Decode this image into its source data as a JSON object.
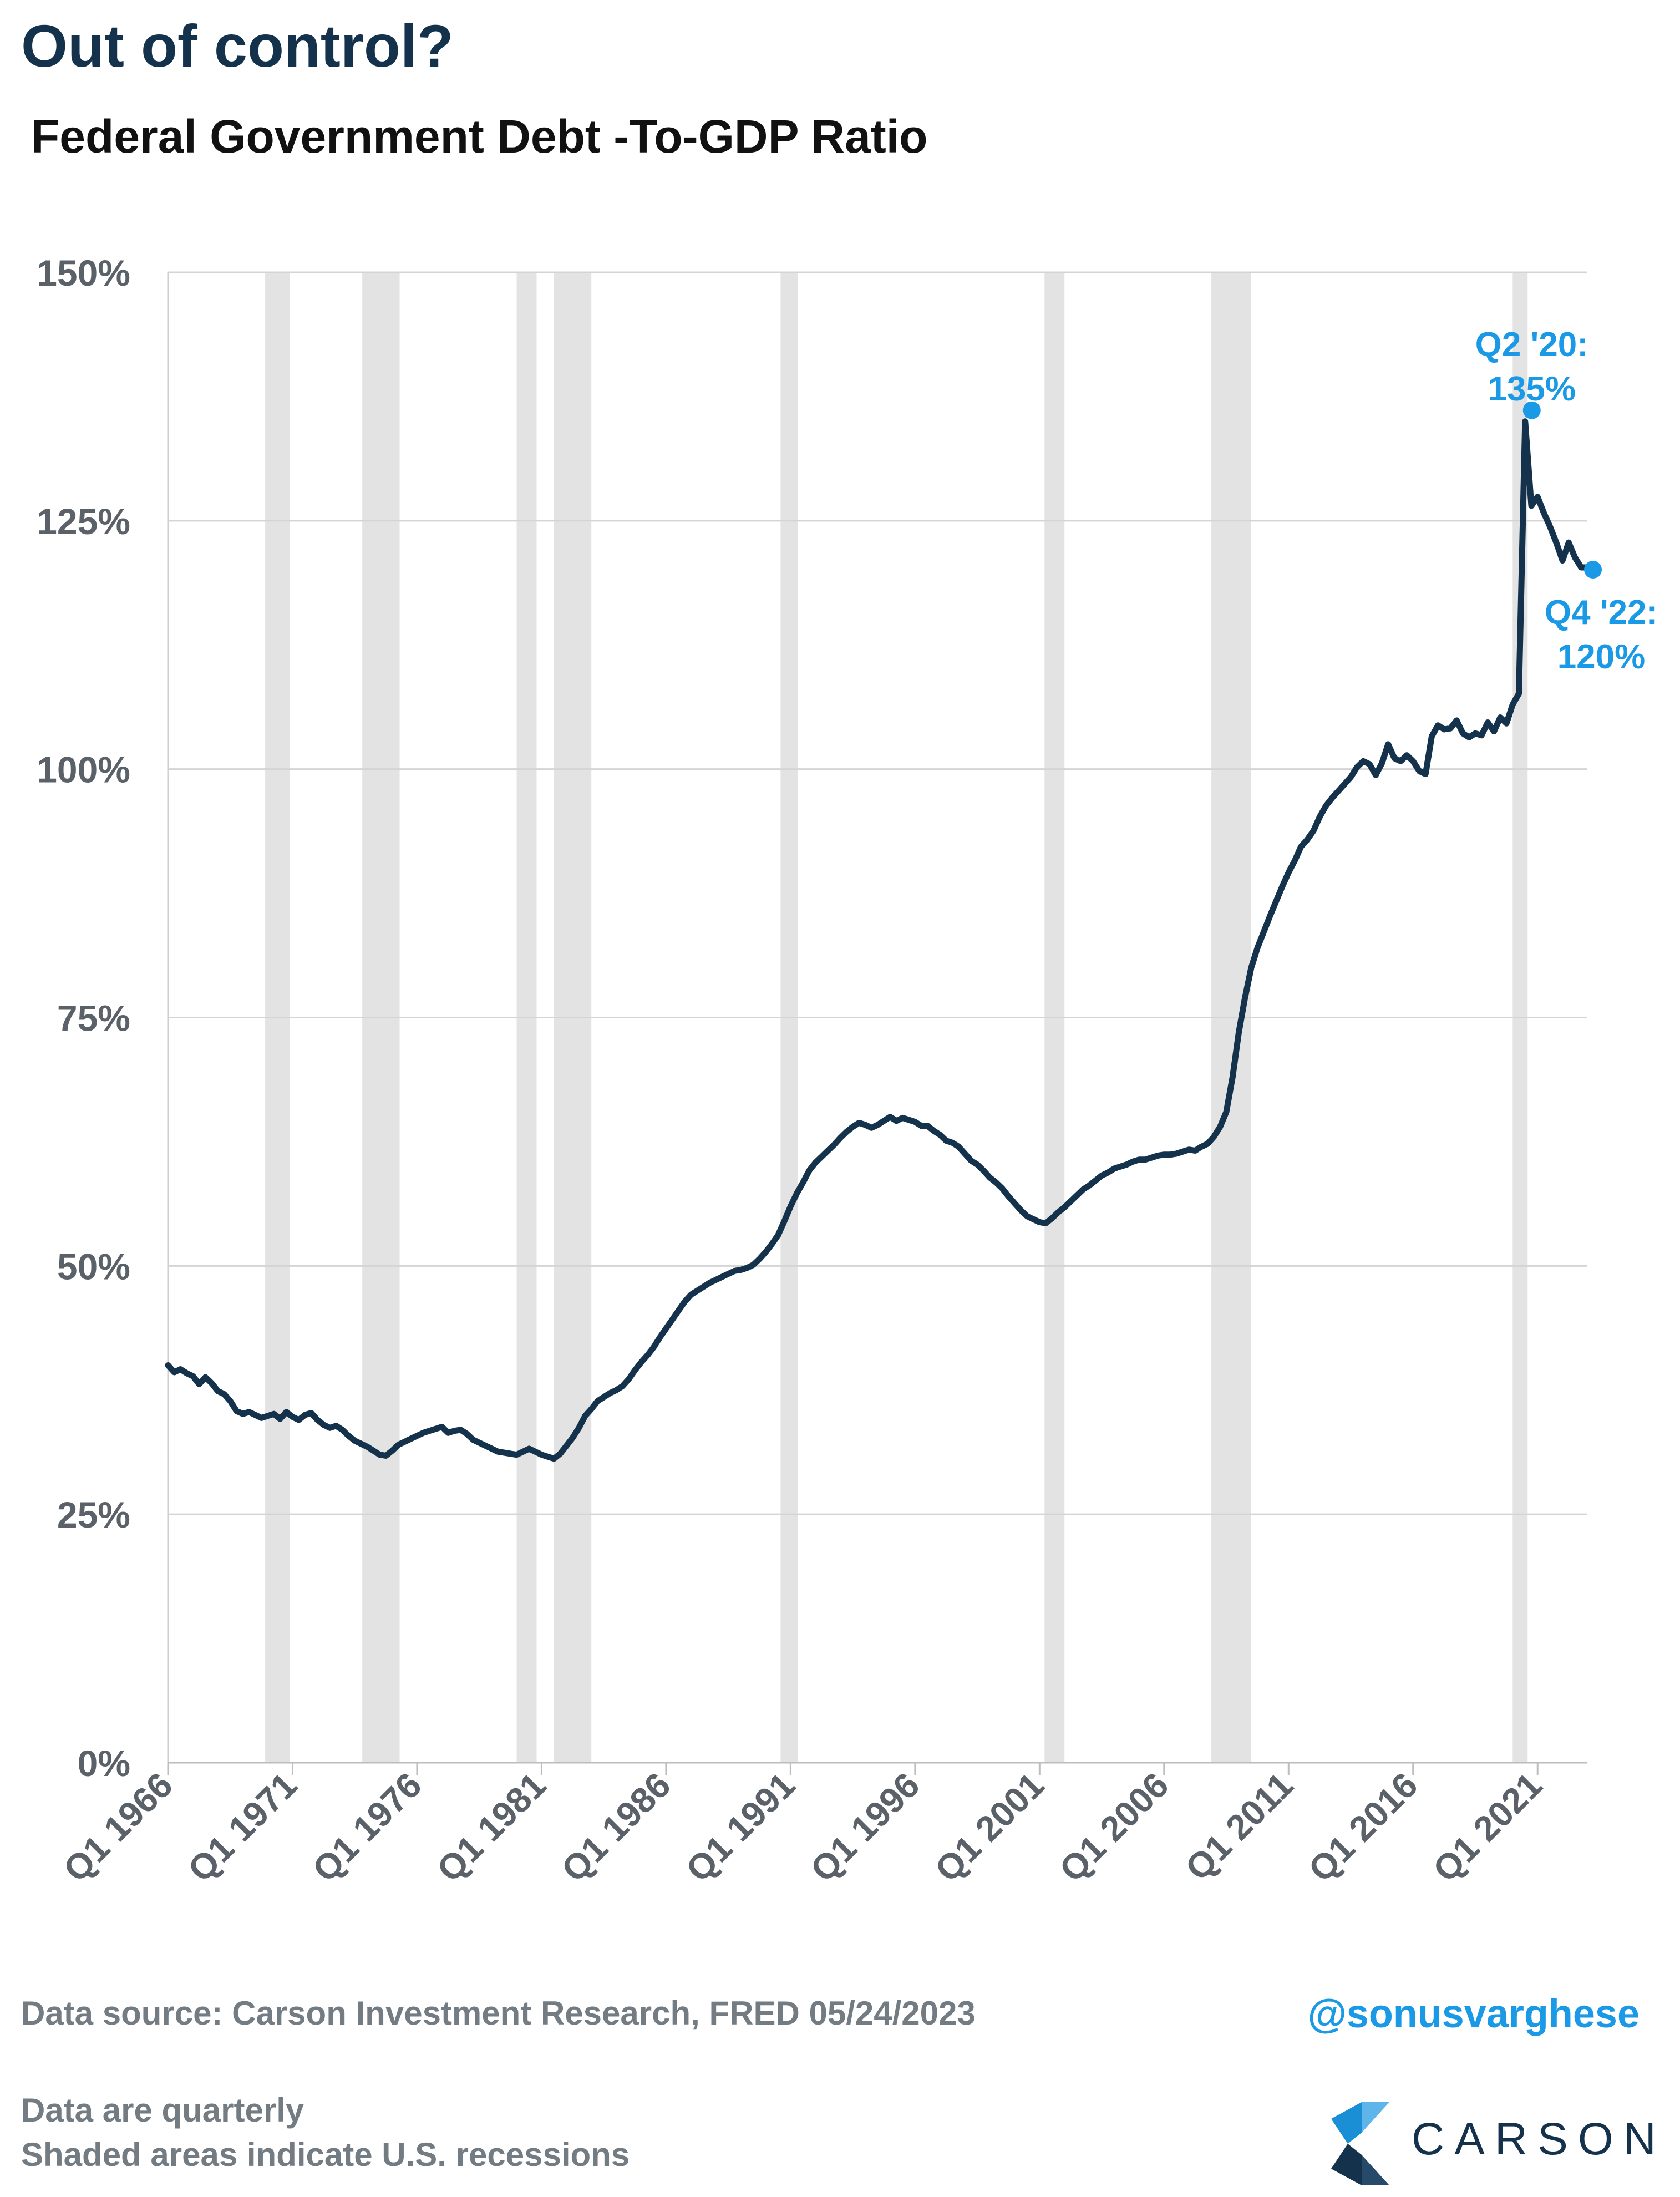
{
  "header": {
    "title": "Out of control?",
    "subtitle": "Federal Government Debt -To-GDP Ratio"
  },
  "chart_data": {
    "type": "line",
    "title": "Federal Government Debt -To-GDP Ratio",
    "xlabel": "",
    "ylabel": "",
    "ylim": [
      0,
      150
    ],
    "xlim": [
      1966.0,
      2023.0
    ],
    "y_ticks": [
      0,
      25,
      50,
      75,
      100,
      125,
      150
    ],
    "y_tick_labels": [
      "0%",
      "25%",
      "50%",
      "75%",
      "100%",
      "125%",
      "150%"
    ],
    "x_ticks": [
      1966,
      1971,
      1976,
      1981,
      1986,
      1991,
      1996,
      2001,
      2006,
      2011,
      2016,
      2021
    ],
    "x_tick_labels": [
      "Q1 1966",
      "Q1 1971",
      "Q1 1976",
      "Q1 1981",
      "Q1 1986",
      "Q1 1991",
      "Q1 1996",
      "Q1 2001",
      "Q1 2006",
      "Q1 2011",
      "Q1 2016",
      "Q1 2021"
    ],
    "grid": true,
    "line_color": "#15324d",
    "recession_color": "#e3e3e3",
    "annotation_color": "#1a9ae6",
    "recessions": [
      [
        1969.9,
        1970.9
      ],
      [
        1973.8,
        1975.3
      ],
      [
        1980.0,
        1980.8
      ],
      [
        1981.5,
        1983.0
      ],
      [
        1990.6,
        1991.3
      ],
      [
        2001.2,
        2002.0
      ],
      [
        2007.9,
        2009.5
      ],
      [
        2020.0,
        2020.6
      ]
    ],
    "series": [
      {
        "points": [
          [
            1966.0,
            40.0
          ],
          [
            1966.25,
            39.3
          ],
          [
            1966.5,
            39.6
          ],
          [
            1966.75,
            39.2
          ],
          [
            1967.0,
            38.9
          ],
          [
            1967.25,
            38.1
          ],
          [
            1967.5,
            38.8
          ],
          [
            1967.75,
            38.2
          ],
          [
            1968.0,
            37.4
          ],
          [
            1968.25,
            37.1
          ],
          [
            1968.5,
            36.4
          ],
          [
            1968.75,
            35.4
          ],
          [
            1969.0,
            35.1
          ],
          [
            1969.25,
            35.3
          ],
          [
            1969.5,
            35.0
          ],
          [
            1969.75,
            34.7
          ],
          [
            1970.0,
            34.9
          ],
          [
            1970.25,
            35.1
          ],
          [
            1970.5,
            34.6
          ],
          [
            1970.75,
            35.3
          ],
          [
            1971.0,
            34.8
          ],
          [
            1971.25,
            34.5
          ],
          [
            1971.5,
            35.0
          ],
          [
            1971.75,
            35.2
          ],
          [
            1972.0,
            34.5
          ],
          [
            1972.25,
            34.0
          ],
          [
            1972.5,
            33.7
          ],
          [
            1972.75,
            33.9
          ],
          [
            1973.0,
            33.5
          ],
          [
            1973.25,
            32.9
          ],
          [
            1973.5,
            32.4
          ],
          [
            1973.75,
            32.1
          ],
          [
            1974.0,
            31.8
          ],
          [
            1974.25,
            31.4
          ],
          [
            1974.5,
            31.0
          ],
          [
            1974.75,
            30.9
          ],
          [
            1975.0,
            31.4
          ],
          [
            1975.25,
            32.0
          ],
          [
            1975.5,
            32.3
          ],
          [
            1975.75,
            32.6
          ],
          [
            1976.0,
            32.9
          ],
          [
            1976.25,
            33.2
          ],
          [
            1976.5,
            33.4
          ],
          [
            1976.75,
            33.6
          ],
          [
            1977.0,
            33.8
          ],
          [
            1977.25,
            33.2
          ],
          [
            1977.5,
            33.4
          ],
          [
            1977.75,
            33.5
          ],
          [
            1978.0,
            33.1
          ],
          [
            1978.25,
            32.5
          ],
          [
            1978.5,
            32.2
          ],
          [
            1978.75,
            31.9
          ],
          [
            1979.0,
            31.6
          ],
          [
            1979.25,
            31.3
          ],
          [
            1979.5,
            31.2
          ],
          [
            1979.75,
            31.1
          ],
          [
            1980.0,
            31.0
          ],
          [
            1980.25,
            31.3
          ],
          [
            1980.5,
            31.6
          ],
          [
            1980.75,
            31.3
          ],
          [
            1981.0,
            31.0
          ],
          [
            1981.25,
            30.8
          ],
          [
            1981.5,
            30.6
          ],
          [
            1981.75,
            31.1
          ],
          [
            1982.0,
            31.9
          ],
          [
            1982.25,
            32.7
          ],
          [
            1982.5,
            33.7
          ],
          [
            1982.75,
            34.9
          ],
          [
            1983.0,
            35.6
          ],
          [
            1983.25,
            36.4
          ],
          [
            1983.5,
            36.8
          ],
          [
            1983.75,
            37.2
          ],
          [
            1984.0,
            37.5
          ],
          [
            1984.25,
            37.9
          ],
          [
            1984.5,
            38.6
          ],
          [
            1984.75,
            39.5
          ],
          [
            1985.0,
            40.3
          ],
          [
            1985.25,
            41.0
          ],
          [
            1985.5,
            41.8
          ],
          [
            1985.75,
            42.8
          ],
          [
            1986.0,
            43.7
          ],
          [
            1986.25,
            44.6
          ],
          [
            1986.5,
            45.5
          ],
          [
            1986.75,
            46.4
          ],
          [
            1987.0,
            47.1
          ],
          [
            1987.25,
            47.5
          ],
          [
            1987.5,
            47.9
          ],
          [
            1987.75,
            48.3
          ],
          [
            1988.0,
            48.6
          ],
          [
            1988.25,
            48.9
          ],
          [
            1988.5,
            49.2
          ],
          [
            1988.75,
            49.5
          ],
          [
            1989.0,
            49.6
          ],
          [
            1989.25,
            49.8
          ],
          [
            1989.5,
            50.1
          ],
          [
            1989.75,
            50.7
          ],
          [
            1990.0,
            51.4
          ],
          [
            1990.25,
            52.2
          ],
          [
            1990.5,
            53.1
          ],
          [
            1990.75,
            54.5
          ],
          [
            1991.0,
            56.0
          ],
          [
            1991.25,
            57.3
          ],
          [
            1991.5,
            58.4
          ],
          [
            1991.75,
            59.6
          ],
          [
            1992.0,
            60.4
          ],
          [
            1992.25,
            61.0
          ],
          [
            1992.5,
            61.6
          ],
          [
            1992.75,
            62.2
          ],
          [
            1993.0,
            62.9
          ],
          [
            1993.25,
            63.5
          ],
          [
            1993.5,
            64.0
          ],
          [
            1993.75,
            64.4
          ],
          [
            1994.0,
            64.2
          ],
          [
            1994.25,
            63.9
          ],
          [
            1994.5,
            64.2
          ],
          [
            1994.75,
            64.6
          ],
          [
            1995.0,
            65.0
          ],
          [
            1995.25,
            64.6
          ],
          [
            1995.5,
            64.9
          ],
          [
            1995.75,
            64.7
          ],
          [
            1996.0,
            64.5
          ],
          [
            1996.25,
            64.1
          ],
          [
            1996.5,
            64.1
          ],
          [
            1996.75,
            63.6
          ],
          [
            1997.0,
            63.2
          ],
          [
            1997.25,
            62.6
          ],
          [
            1997.5,
            62.4
          ],
          [
            1997.75,
            62.0
          ],
          [
            1998.0,
            61.3
          ],
          [
            1998.25,
            60.6
          ],
          [
            1998.5,
            60.2
          ],
          [
            1998.75,
            59.6
          ],
          [
            1999.0,
            58.9
          ],
          [
            1999.25,
            58.4
          ],
          [
            1999.5,
            57.8
          ],
          [
            1999.75,
            57.0
          ],
          [
            2000.0,
            56.3
          ],
          [
            2000.25,
            55.6
          ],
          [
            2000.5,
            55.0
          ],
          [
            2000.75,
            54.7
          ],
          [
            2001.0,
            54.4
          ],
          [
            2001.25,
            54.3
          ],
          [
            2001.5,
            54.8
          ],
          [
            2001.75,
            55.4
          ],
          [
            2002.0,
            55.9
          ],
          [
            2002.25,
            56.5
          ],
          [
            2002.5,
            57.1
          ],
          [
            2002.75,
            57.7
          ],
          [
            2003.0,
            58.1
          ],
          [
            2003.25,
            58.6
          ],
          [
            2003.5,
            59.1
          ],
          [
            2003.75,
            59.4
          ],
          [
            2004.0,
            59.8
          ],
          [
            2004.25,
            60.0
          ],
          [
            2004.5,
            60.2
          ],
          [
            2004.75,
            60.5
          ],
          [
            2005.0,
            60.7
          ],
          [
            2005.25,
            60.7
          ],
          [
            2005.5,
            60.9
          ],
          [
            2005.75,
            61.1
          ],
          [
            2006.0,
            61.2
          ],
          [
            2006.25,
            61.2
          ],
          [
            2006.5,
            61.3
          ],
          [
            2006.75,
            61.5
          ],
          [
            2007.0,
            61.7
          ],
          [
            2007.25,
            61.6
          ],
          [
            2007.5,
            62.0
          ],
          [
            2007.75,
            62.3
          ],
          [
            2008.0,
            63.0
          ],
          [
            2008.25,
            64.0
          ],
          [
            2008.5,
            65.5
          ],
          [
            2008.75,
            69.0
          ],
          [
            2009.0,
            73.5
          ],
          [
            2009.25,
            77.0
          ],
          [
            2009.5,
            80.0
          ],
          [
            2009.75,
            82.0
          ],
          [
            2010.0,
            83.6
          ],
          [
            2010.25,
            85.2
          ],
          [
            2010.5,
            86.7
          ],
          [
            2010.75,
            88.2
          ],
          [
            2011.0,
            89.6
          ],
          [
            2011.25,
            90.8
          ],
          [
            2011.5,
            92.2
          ],
          [
            2011.75,
            92.9
          ],
          [
            2012.0,
            93.8
          ],
          [
            2012.25,
            95.2
          ],
          [
            2012.5,
            96.3
          ],
          [
            2012.75,
            97.1
          ],
          [
            2013.0,
            97.8
          ],
          [
            2013.25,
            98.5
          ],
          [
            2013.5,
            99.2
          ],
          [
            2013.75,
            100.2
          ],
          [
            2014.0,
            100.8
          ],
          [
            2014.25,
            100.5
          ],
          [
            2014.5,
            99.4
          ],
          [
            2014.75,
            100.6
          ],
          [
            2015.0,
            102.5
          ],
          [
            2015.25,
            101.1
          ],
          [
            2015.5,
            100.8
          ],
          [
            2015.75,
            101.4
          ],
          [
            2016.0,
            100.8
          ],
          [
            2016.25,
            99.8
          ],
          [
            2016.5,
            99.5
          ],
          [
            2016.75,
            103.3
          ],
          [
            2017.0,
            104.4
          ],
          [
            2017.25,
            104.0
          ],
          [
            2017.5,
            104.1
          ],
          [
            2017.75,
            104.9
          ],
          [
            2018.0,
            103.6
          ],
          [
            2018.25,
            103.2
          ],
          [
            2018.5,
            103.6
          ],
          [
            2018.75,
            103.4
          ],
          [
            2019.0,
            104.7
          ],
          [
            2019.25,
            103.8
          ],
          [
            2019.5,
            105.2
          ],
          [
            2019.75,
            104.6
          ],
          [
            2020.0,
            106.5
          ],
          [
            2020.25,
            107.6
          ],
          [
            2020.5,
            135.0
          ],
          [
            2020.75,
            126.5
          ],
          [
            2021.0,
            127.4
          ],
          [
            2021.25,
            125.8
          ],
          [
            2021.5,
            124.4
          ],
          [
            2021.75,
            122.8
          ],
          [
            2022.0,
            121.0
          ],
          [
            2022.25,
            122.8
          ],
          [
            2022.5,
            121.3
          ],
          [
            2022.75,
            120.3
          ],
          [
            2023.0,
            120.3
          ]
        ]
      }
    ],
    "annotations": [
      {
        "text_line1": "Q2 '20:",
        "text_line2": "135%",
        "x": 2020.5,
        "y": 135
      },
      {
        "text_line1": "Q4 '22:",
        "text_line2": "120%",
        "x": 2023.0,
        "y": 120.3
      }
    ]
  },
  "footer": {
    "source": "Data source: Carson Investment Research, FRED   05/24/2023",
    "handle": "@sonusvarghese",
    "note1": "Data are quarterly",
    "note2": "Shaded areas indicate U.S. recessions",
    "brand": "CARSON"
  }
}
